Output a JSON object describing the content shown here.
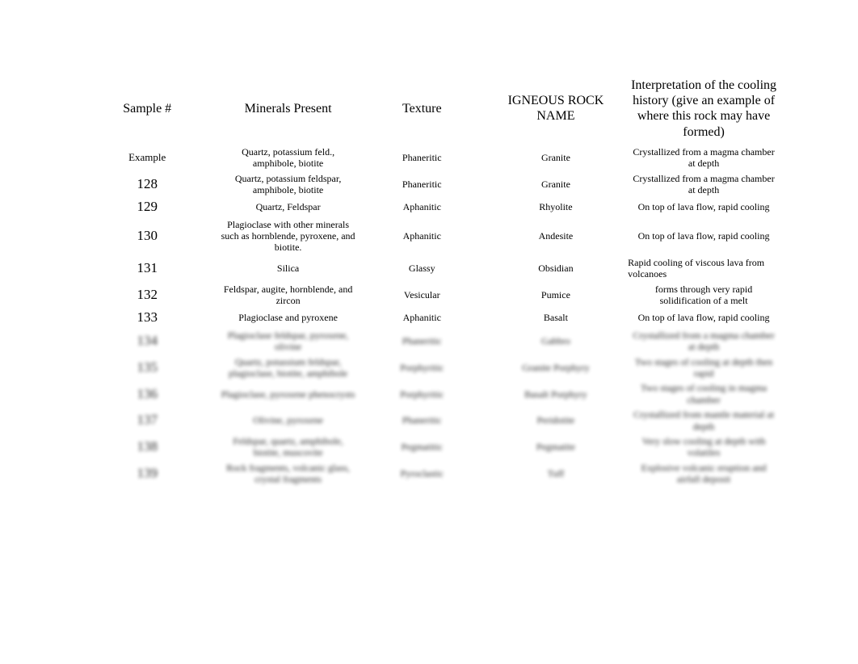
{
  "table": {
    "headers": {
      "sample": "Sample #",
      "minerals": "Minerals Present",
      "texture": "Texture",
      "rock": "IGNEOUS ROCK NAME",
      "interpretation": "Interpretation of the cooling history (give an example of where this rock may have formed)"
    },
    "rows": [
      {
        "sample": "Example",
        "sample_small": true,
        "minerals": "Quartz, potassium feld., amphibole, biotite",
        "texture": "Phaneritic",
        "rock": "Granite",
        "interpretation": "Crystallized from a magma chamber at depth",
        "blurred": false
      },
      {
        "sample": "128",
        "minerals": "Quartz, potassium feldspar, amphibole, biotite",
        "texture": "Phaneritic",
        "rock": "Granite",
        "interpretation": "Crystallized from a magma chamber at depth",
        "blurred": false
      },
      {
        "sample": "129",
        "minerals": "Quartz, Feldspar",
        "texture": "Aphanitic",
        "rock": "Rhyolite",
        "interpretation": "On top of lava flow, rapid cooling",
        "blurred": false
      },
      {
        "sample": "130",
        "minerals": "Plagioclase with other minerals such as hornblende, pyroxene, and biotite.",
        "texture": "Aphanitic",
        "rock": "Andesite",
        "interpretation": "On top of lava flow, rapid cooling",
        "blurred": false
      },
      {
        "sample": "131",
        "minerals": "Silica",
        "texture": "Glassy",
        "rock": "Obsidian",
        "interpretation": "Rapid cooling of viscous lava from volcanoes",
        "interp_left": true,
        "blurred": false
      },
      {
        "sample": "132",
        "minerals": "Feldspar, augite, hornblende, and zircon",
        "texture": "Vesicular",
        "rock": "Pumice",
        "interpretation": "forms through very rapid solidification of a melt",
        "blurred": false
      },
      {
        "sample": "133",
        "minerals": "Plagioclase and pyroxene",
        "texture": "Aphanitic",
        "rock": "Basalt",
        "interpretation": "On top of lava flow, rapid cooling",
        "blurred": false
      },
      {
        "sample": "134",
        "minerals": "Plagioclase feldspar, pyroxene, olivine",
        "texture": "Phaneritic",
        "rock": "Gabbro",
        "interpretation": "Crystallized from a magma chamber at depth",
        "blurred": true
      },
      {
        "sample": "135",
        "minerals": "Quartz, potassium feldspar, plagioclase, biotite, amphibole",
        "texture": "Porphyritic",
        "rock": "Granite Porphyry",
        "interpretation": "Two stages of cooling at depth then rapid",
        "blurred": true
      },
      {
        "sample": "136",
        "minerals": "Plagioclase, pyroxene phenocrysts",
        "texture": "Porphyritic",
        "rock": "Basalt Porphyry",
        "interpretation": "Two stages of cooling in magma chamber",
        "blurred": true
      },
      {
        "sample": "137",
        "minerals": "Olivine, pyroxene",
        "texture": "Phaneritic",
        "rock": "Peridotite",
        "interpretation": "Crystallized from mantle material at depth",
        "blurred": true
      },
      {
        "sample": "138",
        "minerals": "Feldspar, quartz, amphibole, biotite, muscovite",
        "texture": "Pegmatitic",
        "rock": "Pegmatite",
        "interpretation": "Very slow cooling at depth with volatiles",
        "blurred": true
      },
      {
        "sample": "139",
        "minerals": "Rock fragments, volcanic glass, crystal fragments",
        "texture": "Pyroclastic",
        "rock": "Tuff",
        "interpretation": "Explosive volcanic eruption and airfall deposit",
        "blurred": true
      }
    ]
  },
  "styling": {
    "background_color": "#ffffff",
    "text_color": "#000000",
    "header_font_size": 16,
    "sample_number_font_size": 17,
    "body_font_size": 12,
    "font_family": "Times New Roman"
  }
}
